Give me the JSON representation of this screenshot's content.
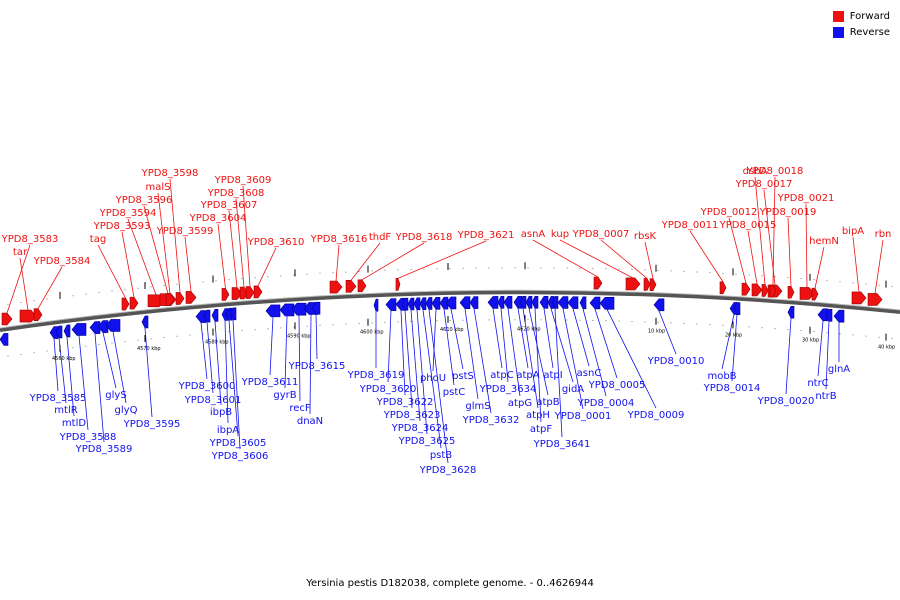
{
  "legend": {
    "forward": {
      "label": "Forward",
      "color": "#ee1111"
    },
    "reverse": {
      "label": "Reverse",
      "color": "#1111ee"
    }
  },
  "caption": "Yersinia pestis D182038, complete genome. - 0..4626944",
  "ticks": [
    "4560 kbp",
    "4570 kbp",
    "4580 kbp",
    "4590 kbp",
    "4600 kbp",
    "4610 kbp",
    "4620 kbp",
    "10 kbp",
    "20 kbp",
    "30 kbp",
    "40 kbp"
  ],
  "forward_genes": [
    "YPD8_3583",
    "tar",
    "YPD8_3584",
    "tag",
    "YPD8_3593",
    "YPD8_3594",
    "YPD8_3596",
    "malS",
    "YPD8_3598",
    "YPD8_3599",
    "YPD8_3604",
    "YPD8_3607",
    "YPD8_3608",
    "YPD8_3609",
    "YPD8_3610",
    "YPD8_3616",
    "thdF",
    "YPD8_3618",
    "YPD8_3621",
    "asnA",
    "kup",
    "YPD8_0007",
    "rbsK",
    "YPD8_0011",
    "YPD8_0012",
    "YPD8_0015",
    "dsbA",
    "YPD8_0017",
    "YPD8_0018",
    "YPD8_0019",
    "YPD8_0021",
    "hemN",
    "bipA",
    "rbn"
  ],
  "reverse_genes": [
    "YPD8_3585",
    "mtlR",
    "mtlD",
    "YPD8_3588",
    "YPD8_3589",
    "glyS",
    "glyQ",
    "YPD8_3595",
    "YPD8_3600",
    "YPD8_3601",
    "ibpB",
    "ibpA",
    "YPD8_3605",
    "YPD8_3606",
    "YPD8_3611",
    "gyrB",
    "recF",
    "dnaN",
    "YPD8_3615",
    "YPD8_3619",
    "YPD8_3620",
    "YPD8_3622",
    "YPD8_3623",
    "YPD8_3624",
    "YPD8_3625",
    "pstB",
    "YPD8_3628",
    "phoU",
    "pstC",
    "pstS",
    "glmS",
    "YPD8_3632",
    "atpC",
    "YPD8_3634",
    "atpG",
    "atpA",
    "atpH",
    "atpB",
    "atpF",
    "atpI",
    "gidA",
    "YPD8_3641",
    "YPD8_0001",
    "asnC",
    "YPD8_0004",
    "YPD8_0005",
    "YPD8_0009",
    "YPD8_0010",
    "mobB",
    "YPD8_0014",
    "YPD8_0020",
    "ntrC",
    "ntrB",
    "glnA"
  ]
}
